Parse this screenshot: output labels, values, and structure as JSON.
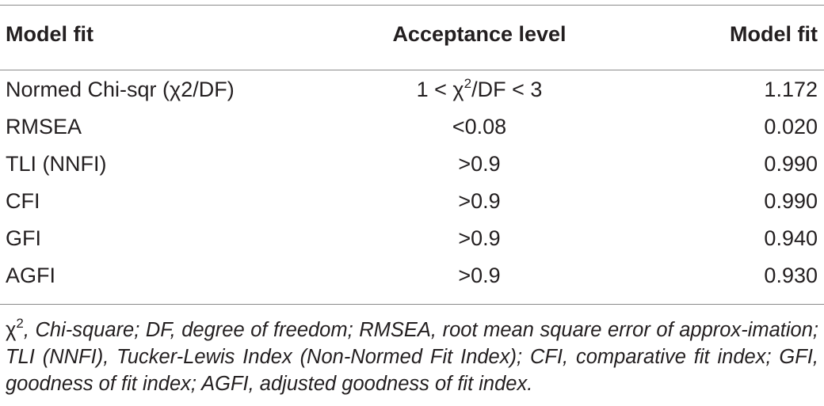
{
  "table": {
    "headers": [
      "Model fit",
      "Acceptance level",
      "Model fit"
    ],
    "rows": [
      {
        "label": "Normed Chi-sqr (χ2/DF)",
        "accept_pre": "1 < χ",
        "accept_sup": "2",
        "accept_post": "/DF < 3",
        "value": "1.172"
      },
      {
        "label": "RMSEA",
        "accept": "<0.08",
        "value": "0.020"
      },
      {
        "label": "TLI (NNFI)",
        "accept": ">0.9",
        "value": "0.990"
      },
      {
        "label": "CFI",
        "accept": ">0.9",
        "value": "0.990"
      },
      {
        "label": "GFI",
        "accept": ">0.9",
        "value": "0.940"
      },
      {
        "label": "AGFI",
        "accept": ">0.9",
        "value": "0.930"
      }
    ]
  },
  "footnote": {
    "symbol": "χ",
    "sup": "2",
    "text": ", Chi-square; DF, degree of freedom; RMSEA, root mean square error of approx-imation; TLI (NNFI), Tucker-Lewis Index (Non-Normed Fit Index); CFI, comparative fit index; GFI, goodness of fit index; AGFI, adjusted goodness of fit index."
  }
}
